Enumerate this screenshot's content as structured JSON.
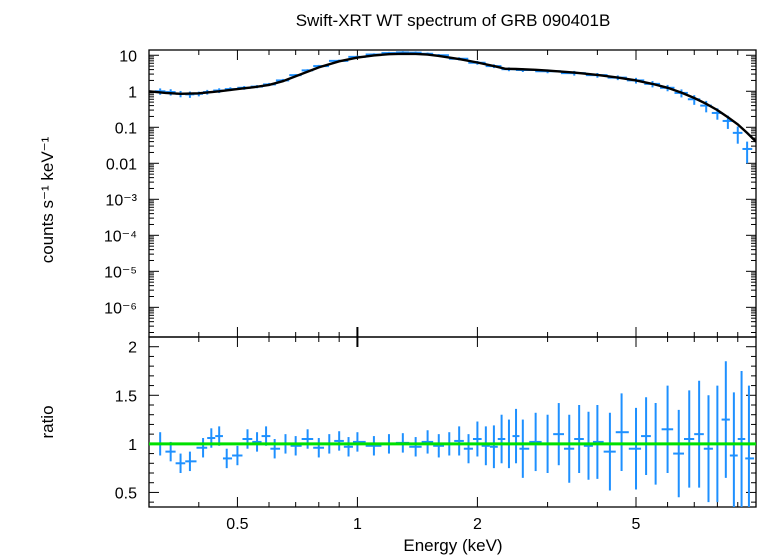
{
  "chart_data": [
    {
      "type": "line",
      "title": "Swift-XRT WT spectrum of GRB 090401B",
      "xlabel": "",
      "ylabel": "counts s⁻¹ keV⁻¹",
      "x_scale": "log",
      "y_scale": "log",
      "xlim": [
        0.3,
        10
      ],
      "ylim": [
        1.5e-07,
        14
      ],
      "grid": false,
      "y_tick_labels": [
        "10",
        "1",
        "0.1",
        "0.01",
        "10⁻³",
        "10⁻⁴",
        "10⁻⁵",
        "10⁻⁶"
      ],
      "y_tick_values": [
        10,
        1,
        0.1,
        0.01,
        0.001,
        0.0001,
        1e-05,
        1e-06
      ],
      "colors": {
        "data": "#1e90ff",
        "model": "#000000"
      },
      "series": [
        {
          "role": "data",
          "x": [
            0.32,
            0.34,
            0.36,
            0.38,
            0.4,
            0.42,
            0.45,
            0.48,
            0.52,
            0.56,
            0.6,
            0.65,
            0.7,
            0.75,
            0.8,
            0.9,
            1.0,
            1.1,
            1.2,
            1.3,
            1.4,
            1.5,
            1.6,
            1.8,
            2.0,
            2.2,
            2.4,
            2.6,
            3.0,
            3.5,
            4.0,
            4.5,
            5.0,
            5.5,
            6.0,
            6.5,
            7.0,
            7.5,
            8.0,
            8.5,
            9.0,
            9.5
          ],
          "y": [
            1.0,
            0.95,
            0.85,
            0.82,
            0.85,
            0.95,
            1.05,
            1.15,
            1.25,
            1.35,
            1.55,
            2.0,
            2.8,
            3.8,
            5.0,
            7.0,
            9.0,
            10.5,
            11.5,
            12.0,
            11.8,
            11.0,
            10.0,
            8.0,
            6.2,
            5.0,
            4.1,
            3.9,
            3.6,
            3.2,
            2.8,
            2.4,
            2.0,
            1.6,
            1.25,
            0.9,
            0.6,
            0.4,
            0.25,
            0.15,
            0.07,
            0.025
          ],
          "yerr_frac": [
            0.2,
            0.2,
            0.2,
            0.2,
            0.15,
            0.15,
            0.15,
            0.12,
            0.12,
            0.1,
            0.1,
            0.1,
            0.08,
            0.08,
            0.08,
            0.08,
            0.08,
            0.08,
            0.08,
            0.08,
            0.08,
            0.08,
            0.08,
            0.1,
            0.12,
            0.12,
            0.12,
            0.12,
            0.12,
            0.15,
            0.15,
            0.15,
            0.18,
            0.2,
            0.2,
            0.25,
            0.3,
            0.35,
            0.35,
            0.4,
            0.5,
            0.6
          ]
        },
        {
          "role": "model",
          "x": [
            0.3,
            0.33,
            0.36,
            0.4,
            0.45,
            0.5,
            0.55,
            0.6,
            0.65,
            0.7,
            0.8,
            0.9,
            1.0,
            1.1,
            1.2,
            1.3,
            1.4,
            1.5,
            1.6,
            1.8,
            2.0,
            2.2,
            2.35,
            2.5,
            2.8,
            3.0,
            3.5,
            4.0,
            4.5,
            5.0,
            5.5,
            6.0,
            6.5,
            7.0,
            7.5,
            8.0,
            8.5,
            9.0,
            9.5,
            10.0
          ],
          "y": [
            1.0,
            0.9,
            0.85,
            0.88,
            1.0,
            1.15,
            1.3,
            1.5,
            1.9,
            2.6,
            4.6,
            6.8,
            8.6,
            9.9,
            10.7,
            11.0,
            10.9,
            10.4,
            9.6,
            7.8,
            6.3,
            5.0,
            4.2,
            4.15,
            3.95,
            3.75,
            3.3,
            2.85,
            2.4,
            2.0,
            1.6,
            1.25,
            0.92,
            0.65,
            0.45,
            0.3,
            0.19,
            0.12,
            0.07,
            0.04
          ]
        }
      ]
    },
    {
      "type": "line",
      "xlabel": "Energy (keV)",
      "ylabel": "ratio",
      "x_scale": "log",
      "xlim": [
        0.3,
        10
      ],
      "ylim": [
        0.35,
        2.1
      ],
      "x_tick_labels": [
        "0.5",
        "1",
        "2",
        "5"
      ],
      "x_tick_values": [
        0.5,
        1,
        2,
        5
      ],
      "y_tick_labels": [
        "0.5",
        "1",
        "1.5",
        "2"
      ],
      "y_tick_values": [
        0.5,
        1,
        1.5,
        2
      ],
      "reference_line": 1.0,
      "colors": {
        "data": "#1e90ff",
        "reference": "#00e000"
      },
      "series": [
        {
          "role": "data",
          "x": [
            0.32,
            0.34,
            0.36,
            0.38,
            0.41,
            0.43,
            0.45,
            0.47,
            0.5,
            0.53,
            0.56,
            0.59,
            0.62,
            0.66,
            0.7,
            0.75,
            0.8,
            0.85,
            0.9,
            0.95,
            1.0,
            1.1,
            1.2,
            1.3,
            1.4,
            1.5,
            1.6,
            1.7,
            1.8,
            1.9,
            2.0,
            2.1,
            2.2,
            2.3,
            2.4,
            2.5,
            2.6,
            2.8,
            3.0,
            3.2,
            3.4,
            3.6,
            3.8,
            4.0,
            4.3,
            4.6,
            5.0,
            5.3,
            5.6,
            6.0,
            6.4,
            6.8,
            7.2,
            7.6,
            8.0,
            8.4,
            8.8,
            9.2,
            9.6
          ],
          "y": [
            1.0,
            0.92,
            0.8,
            0.82,
            0.96,
            1.06,
            1.08,
            0.85,
            0.88,
            1.05,
            1.02,
            1.08,
            0.95,
            1.0,
            0.98,
            1.05,
            0.96,
            1.0,
            1.03,
            0.97,
            1.02,
            0.98,
            1.0,
            1.01,
            0.97,
            1.02,
            0.98,
            1.0,
            1.03,
            0.95,
            1.05,
            0.98,
            0.97,
            1.05,
            1.0,
            1.08,
            0.95,
            1.02,
            1.0,
            1.1,
            0.95,
            1.05,
            0.98,
            1.02,
            0.92,
            1.12,
            0.95,
            1.08,
            1.0,
            1.15,
            0.9,
            1.05,
            1.1,
            0.95,
            1.0,
            1.25,
            0.88,
            1.05,
            0.85
          ],
          "yerr": [
            0.12,
            0.1,
            0.1,
            0.1,
            0.1,
            0.1,
            0.1,
            0.1,
            0.1,
            0.1,
            0.1,
            0.1,
            0.1,
            0.1,
            0.1,
            0.1,
            0.1,
            0.1,
            0.1,
            0.1,
            0.1,
            0.1,
            0.1,
            0.1,
            0.1,
            0.12,
            0.12,
            0.12,
            0.15,
            0.15,
            0.18,
            0.2,
            0.22,
            0.25,
            0.25,
            0.28,
            0.3,
            0.3,
            0.3,
            0.32,
            0.35,
            0.35,
            0.35,
            0.38,
            0.4,
            0.4,
            0.42,
            0.4,
            0.42,
            0.45,
            0.45,
            0.5,
            0.55,
            0.55,
            0.6,
            0.6,
            0.65,
            0.7,
            0.75
          ]
        }
      ]
    }
  ]
}
